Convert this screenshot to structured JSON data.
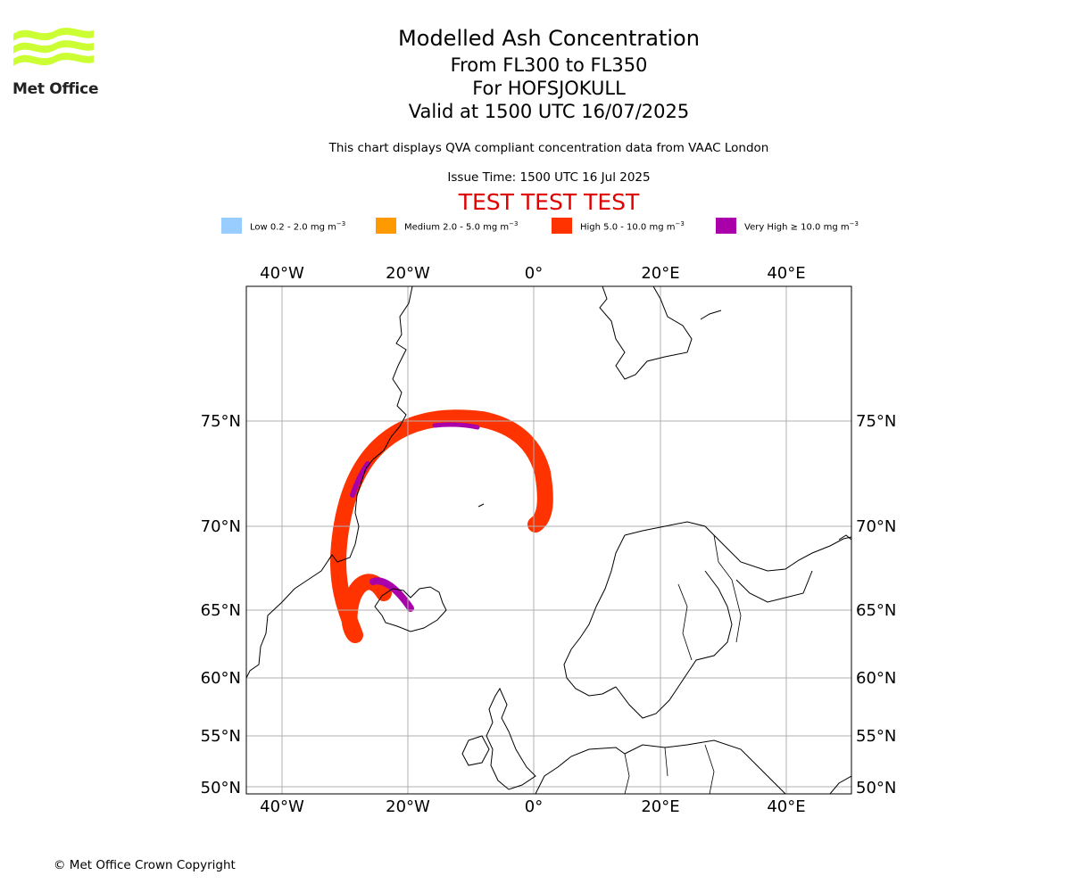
{
  "logo": {
    "text": "Met Office",
    "icon": "met-office-wave-logo",
    "color": "#ccff33"
  },
  "title": {
    "line1": "Modelled Ash Concentration",
    "line2": "From FL300 to FL350",
    "line3": "For HOFSJOKULL",
    "line4": "Valid at 1500 UTC 16/07/2025"
  },
  "subtitle": "This chart displays QVA compliant concentration data from VAAC London",
  "issue_time": "Issue Time: 1500 UTC 16 Jul 2025",
  "test_banner": "TEST TEST TEST",
  "legend": [
    {
      "label": "Low 0.2 - 2.0 mg m",
      "unit_exp": "−3",
      "color": "#99ccff"
    },
    {
      "label": "Medium 2.0 - 5.0 mg m",
      "unit_exp": "−3",
      "color": "#ff9900"
    },
    {
      "label": "High 5.0 - 10.0 mg m",
      "unit_exp": "−3",
      "color": "#ff3300"
    },
    {
      "label": "Very High  ≥  10.0 mg m",
      "unit_exp": "−3",
      "color": "#aa00aa"
    }
  ],
  "map": {
    "lon_ticks": [
      "40°W",
      "20°W",
      "0°",
      "20°E",
      "40°E"
    ],
    "lat_ticks": [
      "75°N",
      "70°N",
      "65°N",
      "60°N",
      "55°N",
      "50°N"
    ],
    "grid": true
  },
  "copyright": "© Met Office Crown Copyright"
}
